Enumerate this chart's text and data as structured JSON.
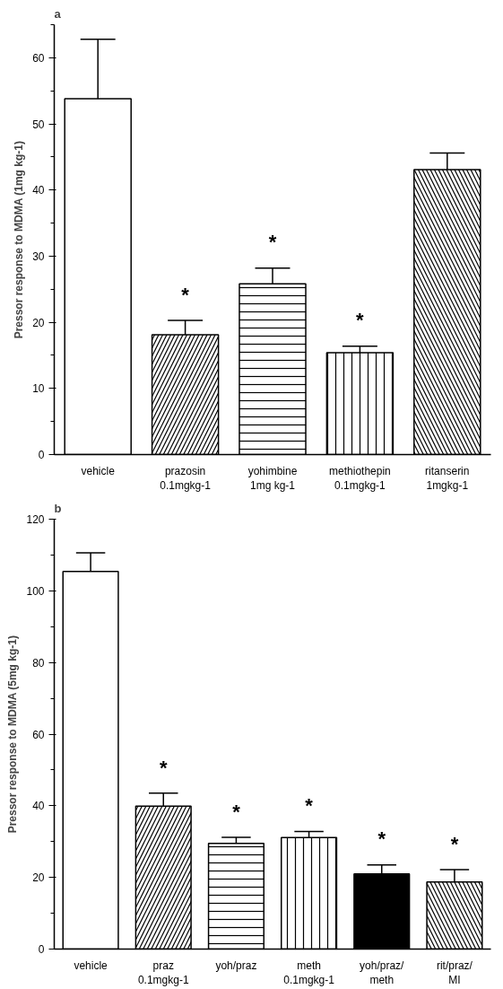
{
  "chart_data": [
    {
      "type": "bar",
      "title": "a",
      "ylabel": "Pressor response to MDMA (1mg kg-1)",
      "categories": [
        "vehicle",
        "prazosin\n0.1mgkg-1",
        "yohimbine\n1mg kg-1",
        "methiothepin\n0.1mgkg-1",
        "ritanserin\n1mgkg-1"
      ],
      "values": [
        53.8,
        18.1,
        25.8,
        15.4,
        43.1
      ],
      "errors": [
        [
          53.8,
          62.8
        ],
        [
          18.1,
          20.3
        ],
        [
          25.8,
          28.2
        ],
        [
          15.4,
          16.4
        ],
        [
          43.1,
          45.6
        ]
      ],
      "colors": [
        "#ffffff",
        "#ffffff",
        "#ffffff",
        "#ffffff",
        "#ffffff"
      ],
      "ylim": [
        0,
        65
      ],
      "yticks": [
        0,
        10,
        20,
        30,
        40,
        50,
        60
      ],
      "grid": false,
      "value_labels": [
        null,
        "*",
        "*",
        "*",
        null
      ]
    },
    {
      "type": "bar",
      "title": "b",
      "ylabel": "Pressor response to MDMA (5mg kg-1)",
      "categories": [
        "vehicle",
        "praz\n0.1mgkg-1",
        "yoh/praz",
        "meth\n0.1mgkg-1",
        "yoh/praz/\nmeth",
        "rit/praz/\nMI"
      ],
      "values": [
        105.4,
        39.9,
        29.5,
        31.1,
        21.0,
        18.7
      ],
      "errors": [
        [
          105.4,
          110.6
        ],
        [
          39.9,
          43.5
        ],
        [
          29.5,
          31.2
        ],
        [
          31.1,
          32.8
        ],
        [
          21.0,
          23.5
        ],
        [
          18.7,
          22.2
        ]
      ],
      "colors": [
        "#ffffff",
        "#ffffff",
        "#ffffff",
        "#ffffff",
        "#000000",
        "#ffffff"
      ],
      "ylim": [
        0,
        120
      ],
      "yticks": [
        0,
        20,
        40,
        60,
        80,
        100,
        120
      ],
      "grid": false,
      "value_labels": [
        null,
        "*",
        "*",
        "*",
        "*",
        "*"
      ]
    }
  ]
}
